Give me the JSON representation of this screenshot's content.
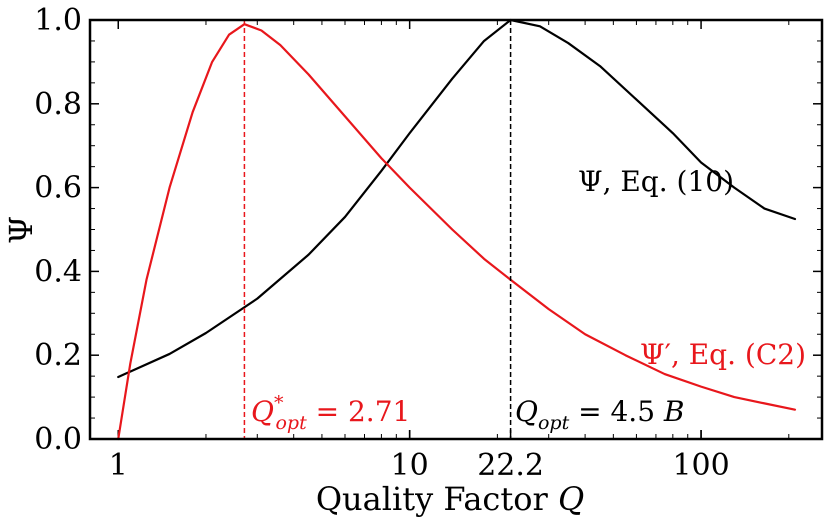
{
  "chart_data": {
    "type": "line",
    "xlabel": "Quality Factor",
    "xlabel_var": "Q",
    "ylabel": "Ψ",
    "xscale": "log",
    "xlim": [
      0.8,
      260
    ],
    "ylim": [
      0,
      1
    ],
    "x_ticks": [
      {
        "value": 1,
        "label": "1"
      },
      {
        "value": 10,
        "label": "10"
      },
      {
        "value": 22.2,
        "label": "22.2"
      },
      {
        "value": 100,
        "label": "100"
      }
    ],
    "y_ticks": [
      {
        "value": 0.0,
        "label": "0.0"
      },
      {
        "value": 0.2,
        "label": "0.2"
      },
      {
        "value": 0.4,
        "label": "0.4"
      },
      {
        "value": 0.6,
        "label": "0.6"
      },
      {
        "value": 0.8,
        "label": "0.8"
      },
      {
        "value": 1.0,
        "label": "1.0"
      }
    ],
    "grid": false,
    "series": [
      {
        "name": "Ψ, Eq. (10)",
        "color": "#000000",
        "x": [
          1,
          1.5,
          2,
          3,
          4.5,
          6,
          8,
          10,
          14,
          18,
          22.2,
          28,
          35,
          45,
          60,
          80,
          100,
          130,
          165,
          210
        ],
        "y": [
          0.148,
          0.203,
          0.253,
          0.335,
          0.44,
          0.53,
          0.64,
          0.73,
          0.86,
          0.95,
          1.0,
          0.985,
          0.945,
          0.89,
          0.81,
          0.73,
          0.66,
          0.6,
          0.55,
          0.525
        ]
      },
      {
        "name": "Ψ′, Eq. (C2)",
        "color": "#e8171c",
        "x": [
          1,
          1.1,
          1.25,
          1.5,
          1.8,
          2.1,
          2.4,
          2.71,
          3.1,
          3.6,
          4.5,
          6,
          8,
          10,
          14,
          18,
          22.2,
          30,
          40,
          55,
          75,
          100,
          130,
          165,
          210
        ],
        "y": [
          0.0,
          0.18,
          0.38,
          0.6,
          0.78,
          0.9,
          0.965,
          0.99,
          0.975,
          0.94,
          0.87,
          0.77,
          0.67,
          0.6,
          0.5,
          0.43,
          0.38,
          0.31,
          0.25,
          0.2,
          0.155,
          0.125,
          0.1,
          0.085,
          0.07
        ]
      }
    ],
    "markers": [
      {
        "x": 2.71,
        "color": "#e8171c",
        "label": "Q*opt = 2.71"
      },
      {
        "x": 22.2,
        "color": "#000000",
        "label": "Qopt = 4.5 B"
      }
    ],
    "annotations": {
      "psi_label": {
        "main": "Ψ",
        "rest": ", Eq. (10)"
      },
      "psi_prime_label": {
        "main": "Ψ′",
        "rest": ", Eq. (C2)"
      },
      "qopt_star": {
        "sym": "Q",
        "sup": "*",
        "sub": "opt",
        "rest": " = 2.71"
      },
      "qopt": {
        "sym": "Q",
        "sub": "opt",
        "rest": " = 4.5 ",
        "var": "B"
      }
    }
  }
}
